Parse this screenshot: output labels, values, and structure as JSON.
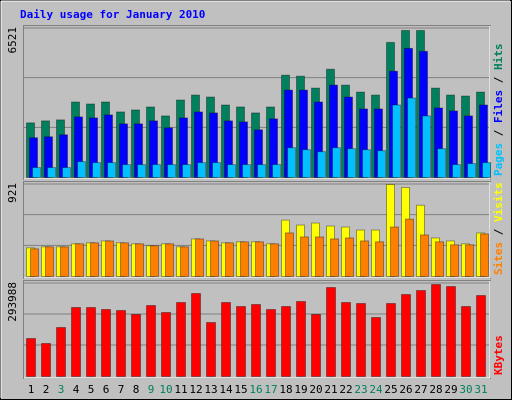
{
  "title": "Daily usage for January 2010",
  "legend_separator": "/",
  "chart_data": [
    {
      "type": "bar",
      "ylim": [
        0,
        6521
      ],
      "yticks": [
        6521
      ],
      "grid": true,
      "series": [
        {
          "name": "Hits",
          "color": "#00805c",
          "values": [
            2391,
            2478,
            2521,
            3304,
            3217,
            3304,
            2869,
            2956,
            3086,
            2695,
            3391,
            3608,
            3521,
            3173,
            3086,
            2826,
            3086,
            4477,
            4434,
            3912,
            4738,
            4043,
            3738,
            3608,
            5912,
            6434,
            6434,
            3912,
            3608,
            3565,
            3738
          ]
        },
        {
          "name": "Files",
          "color": "#0000ff",
          "values": [
            1739,
            1782,
            1869,
            2652,
            2608,
            2739,
            2347,
            2347,
            2478,
            2174,
            2608,
            2869,
            2826,
            2478,
            2434,
            2087,
            2565,
            3825,
            3825,
            3304,
            4043,
            3521,
            2999,
            2999,
            4651,
            5651,
            5521,
            3043,
            2912,
            2695,
            3173
          ]
        },
        {
          "name": "Pages",
          "color": "#00c0ff",
          "values": [
            435,
            435,
            435,
            696,
            652,
            652,
            565,
            565,
            565,
            565,
            565,
            652,
            652,
            565,
            565,
            565,
            565,
            1304,
            1217,
            1130,
            1304,
            1261,
            1217,
            1174,
            3173,
            3478,
            2695,
            1261,
            565,
            609,
            652
          ]
        }
      ]
    },
    {
      "type": "bar",
      "ylim": [
        0,
        921
      ],
      "yticks": [
        921
      ],
      "grid": true,
      "series": [
        {
          "name": "Visits",
          "color": "#ffff00",
          "values": [
            287,
            297,
            297,
            327,
            337,
            356,
            337,
            327,
            307,
            327,
            297,
            376,
            356,
            337,
            347,
            347,
            327,
            564,
            515,
            535,
            505,
            495,
            465,
            465,
            921,
            891,
            713,
            386,
            356,
            327,
            436
          ]
        },
        {
          "name": "Sites",
          "color": "#ff8000",
          "values": [
            277,
            297,
            297,
            327,
            337,
            356,
            337,
            327,
            307,
            327,
            297,
            376,
            356,
            337,
            347,
            347,
            327,
            436,
            396,
            396,
            376,
            386,
            356,
            347,
            495,
            574,
            416,
            347,
            317,
            317,
            426
          ]
        }
      ]
    },
    {
      "type": "bar",
      "ylim": [
        0,
        293988
      ],
      "yticks": [
        293988
      ],
      "grid": true,
      "categories": [
        "1",
        "2",
        "3",
        "4",
        "5",
        "6",
        "7",
        "8",
        "9",
        "10",
        "11",
        "12",
        "13",
        "14",
        "15",
        "16",
        "17",
        "18",
        "19",
        "20",
        "21",
        "22",
        "23",
        "24",
        "25",
        "26",
        "27",
        "28",
        "29",
        "30",
        "31"
      ],
      "label_colors": [
        "#000000",
        "#000000",
        "#00805c",
        "#000000",
        "#000000",
        "#000000",
        "#000000",
        "#000000",
        "#00805c",
        "#00805c",
        "#000000",
        "#000000",
        "#000000",
        "#000000",
        "#000000",
        "#00805c",
        "#00805c",
        "#000000",
        "#000000",
        "#000000",
        "#000000",
        "#000000",
        "#00805c",
        "#00805c",
        "#000000",
        "#000000",
        "#000000",
        "#000000",
        "#000000",
        "#00805c",
        "#00805c"
      ],
      "series": [
        {
          "name": "KBytes",
          "color": "#ff0000",
          "values": [
            120118,
            104313,
            154889,
            218109,
            218109,
            211787,
            208626,
            195982,
            224431,
            202304,
            233914,
            262363,
            170694,
            233914,
            221270,
            227592,
            211787,
            221270,
            237075,
            195982,
            281329,
            233914,
            230753,
            186499,
            230753,
            259202,
            271846,
            290812,
            284490,
            221270,
            256041
          ]
        }
      ]
    }
  ]
}
